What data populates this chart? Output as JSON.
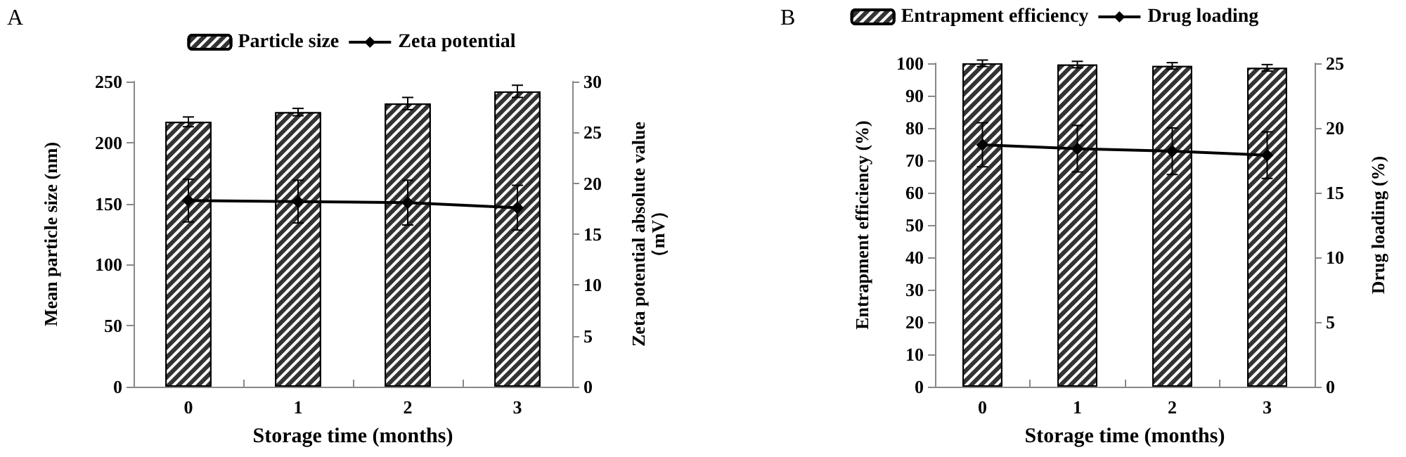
{
  "chart_data": [
    {
      "type": "bar",
      "title": "A",
      "xlabel": "Storage time (months)",
      "ylabel": "Mean particle size (nm)",
      "y2label": "Zeta potential absolute value\n（mV）",
      "categories": [
        "0",
        "1",
        "2",
        "3"
      ],
      "series": [
        {
          "name": "Particle size",
          "color": "#333333",
          "values": [
            217,
            225,
            232,
            242
          ],
          "errors": [
            4,
            3,
            5,
            5
          ]
        },
        {
          "name": "Zeta potential",
          "type": "line",
          "axis": "y2",
          "color": "#000000",
          "values": [
            18.3,
            18.2,
            18.1,
            17.6
          ],
          "errors": [
            2.1,
            2.1,
            2.2,
            2.2
          ]
        }
      ],
      "ylim": [
        0,
        250
      ],
      "yticks": [
        0,
        50,
        100,
        150,
        200,
        250
      ],
      "y2lim": [
        0,
        30
      ],
      "y2ticks": [
        0,
        5,
        10,
        15,
        20,
        25,
        30
      ],
      "grid": false,
      "legend": "top",
      "marker": "diamond",
      "line_style": "solid"
    },
    {
      "type": "bar",
      "title": "B",
      "xlabel": "Storage time (months)",
      "ylabel": "Entrapment efficiency (%)",
      "y2label": "Drug loading (%)",
      "categories": [
        "0",
        "1",
        "2",
        "3"
      ],
      "series": [
        {
          "name": "Entrapment efficiency",
          "color": "#333333",
          "values": [
            100,
            99.6,
            99.2,
            98.6
          ],
          "errors": [
            1,
            1,
            1,
            1
          ]
        },
        {
          "name": "Drug loading",
          "type": "line",
          "axis": "y2",
          "color": "#000000",
          "values": [
            18.7,
            18.4,
            18.2,
            17.9
          ],
          "errors": [
            1.7,
            1.8,
            1.8,
            1.8
          ]
        }
      ],
      "ylim": [
        0,
        100
      ],
      "yticks": [
        0,
        10,
        20,
        30,
        40,
        50,
        60,
        70,
        80,
        90,
        100
      ],
      "y2lim": [
        0,
        25
      ],
      "y2ticks": [
        0,
        5,
        10,
        15,
        20,
        25
      ],
      "grid": false,
      "legend": "top",
      "marker": "diamond",
      "line_style": "solid"
    }
  ]
}
